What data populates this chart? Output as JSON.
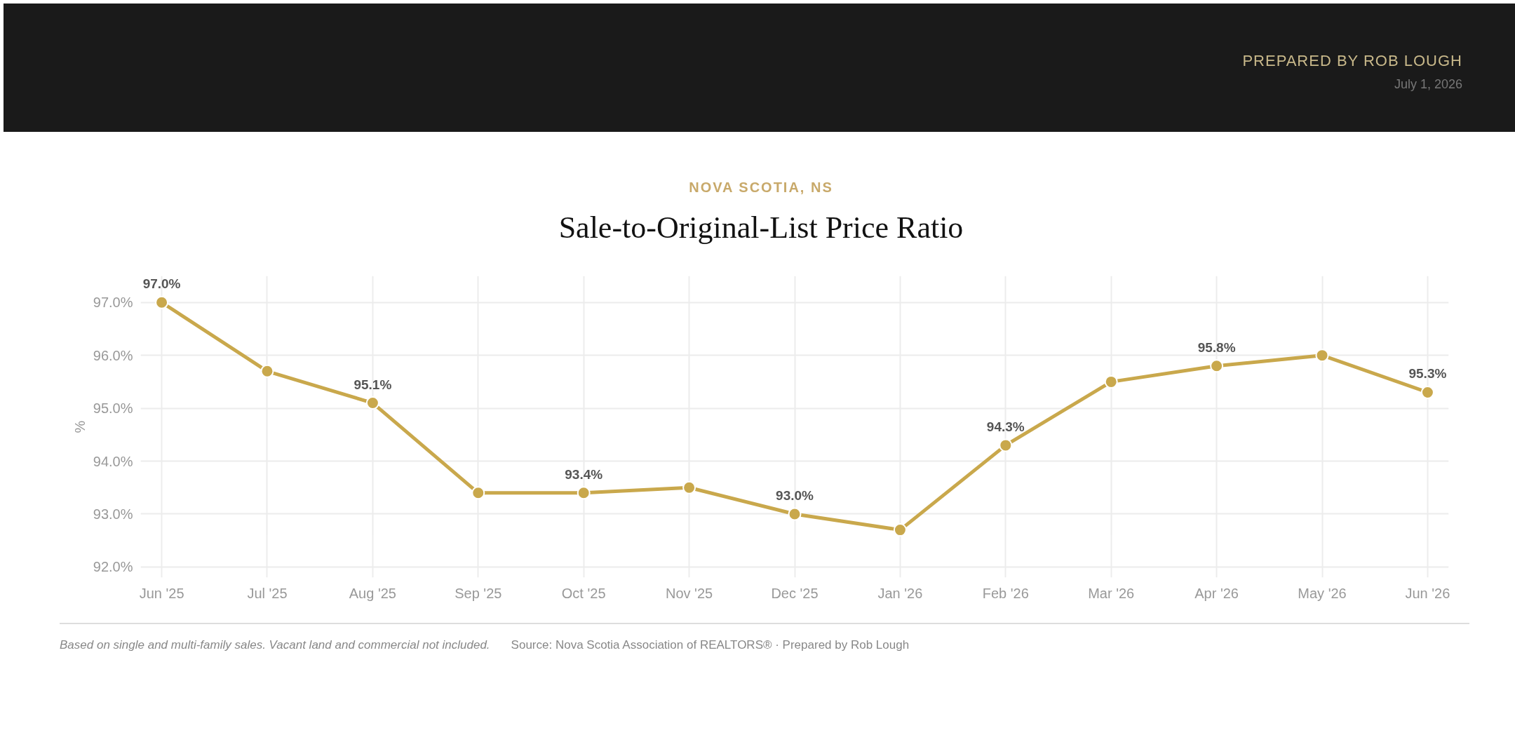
{
  "chart_data": {
    "type": "line",
    "subtitle": "NOVA SCOTIA, NS",
    "title": "Sale-to-Original-List Price Ratio",
    "ylabel": "%",
    "categories": [
      "Jun '25",
      "Jul '25",
      "Aug '25",
      "Sep '25",
      "Oct '25",
      "Nov '25",
      "Dec '25",
      "Jan '26",
      "Feb '26",
      "Mar '26",
      "Apr '26",
      "May '26",
      "Jun '26"
    ],
    "series": [
      {
        "color": "#c9a84c",
        "values": [
          97.0,
          95.7,
          95.1,
          93.4,
          93.4,
          93.5,
          93.0,
          92.7,
          94.3,
          95.5,
          95.8,
          96.0,
          95.3
        ],
        "value_labels": [
          "97.0%",
          null,
          "95.1%",
          null,
          "93.4%",
          null,
          "93.0%",
          null,
          "94.3%",
          null,
          "95.8%",
          null,
          "95.3%"
        ]
      }
    ],
    "ylim": [
      91.8,
      97.5
    ],
    "yticks": [
      {
        "value": 92,
        "label": "92.0%"
      },
      {
        "value": 93,
        "label": "93.0%"
      },
      {
        "value": 94,
        "label": "94.0%"
      },
      {
        "value": 95,
        "label": "95.0%"
      },
      {
        "value": 96,
        "label": "96.0%"
      },
      {
        "value": 97,
        "label": "97.0%"
      }
    ],
    "grid": true,
    "marker": "circle",
    "line_style": "solid",
    "annotations": [
      "PREPARED BY ROB LOUGH",
      "July 1, 2026",
      "Based on single and multi-family sales. Vacant land and commercial not included.",
      "Source: Nova Scotia Association of REALTORS® · Prepared by Rob Lough"
    ]
  }
}
